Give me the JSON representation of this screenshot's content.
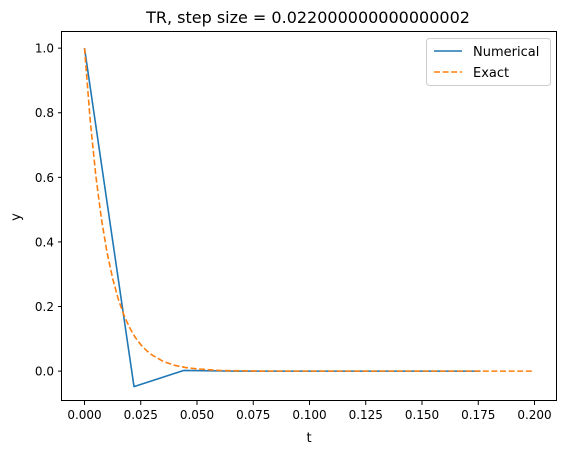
{
  "chart_data": {
    "type": "line",
    "title": "TR, step size = 0.022000000000000002",
    "xlabel": "t",
    "ylabel": "y",
    "xlim": [
      -0.01,
      0.21
    ],
    "ylim": [
      -0.0925,
      1.05
    ],
    "xticks": [
      0.0,
      0.025,
      0.05,
      0.075,
      0.1,
      0.125,
      0.15,
      0.175,
      0.2
    ],
    "xtick_labels": [
      "0.000",
      "0.025",
      "0.050",
      "0.075",
      "0.100",
      "0.125",
      "0.150",
      "0.175",
      "0.200"
    ],
    "yticks": [
      0.0,
      0.2,
      0.4,
      0.6,
      0.8,
      1.0
    ],
    "ytick_labels": [
      "0.0",
      "0.2",
      "0.4",
      "0.6",
      "0.8",
      "1.0"
    ],
    "grid": false,
    "legend_position": "upper right",
    "series": [
      {
        "name": "Numerical",
        "color": "#1f77b4",
        "style": "solid",
        "x": [
          0.0,
          0.022,
          0.044,
          0.066,
          0.088,
          0.11,
          0.132,
          0.154,
          0.176
        ],
        "y": [
          1.0,
          -0.048,
          0.002,
          0.0,
          0.0,
          0.0,
          0.0,
          0.0,
          0.0
        ]
      },
      {
        "name": "Exact",
        "color": "#ff7f0e",
        "style": "dashed",
        "x": [
          0.0,
          0.0025,
          0.005,
          0.0075,
          0.01,
          0.0125,
          0.015,
          0.0175,
          0.02,
          0.0225,
          0.025,
          0.0275,
          0.03,
          0.035,
          0.04,
          0.045,
          0.05,
          0.06,
          0.07,
          0.08,
          0.1,
          0.125,
          0.15,
          0.175,
          0.2
        ],
        "y": [
          1.0,
          0.779,
          0.607,
          0.472,
          0.368,
          0.287,
          0.223,
          0.174,
          0.135,
          0.105,
          0.082,
          0.064,
          0.05,
          0.03,
          0.018,
          0.011,
          0.007,
          0.002,
          0.001,
          0.0,
          0.0,
          0.0,
          0.0,
          0.0,
          0.0
        ]
      }
    ]
  }
}
